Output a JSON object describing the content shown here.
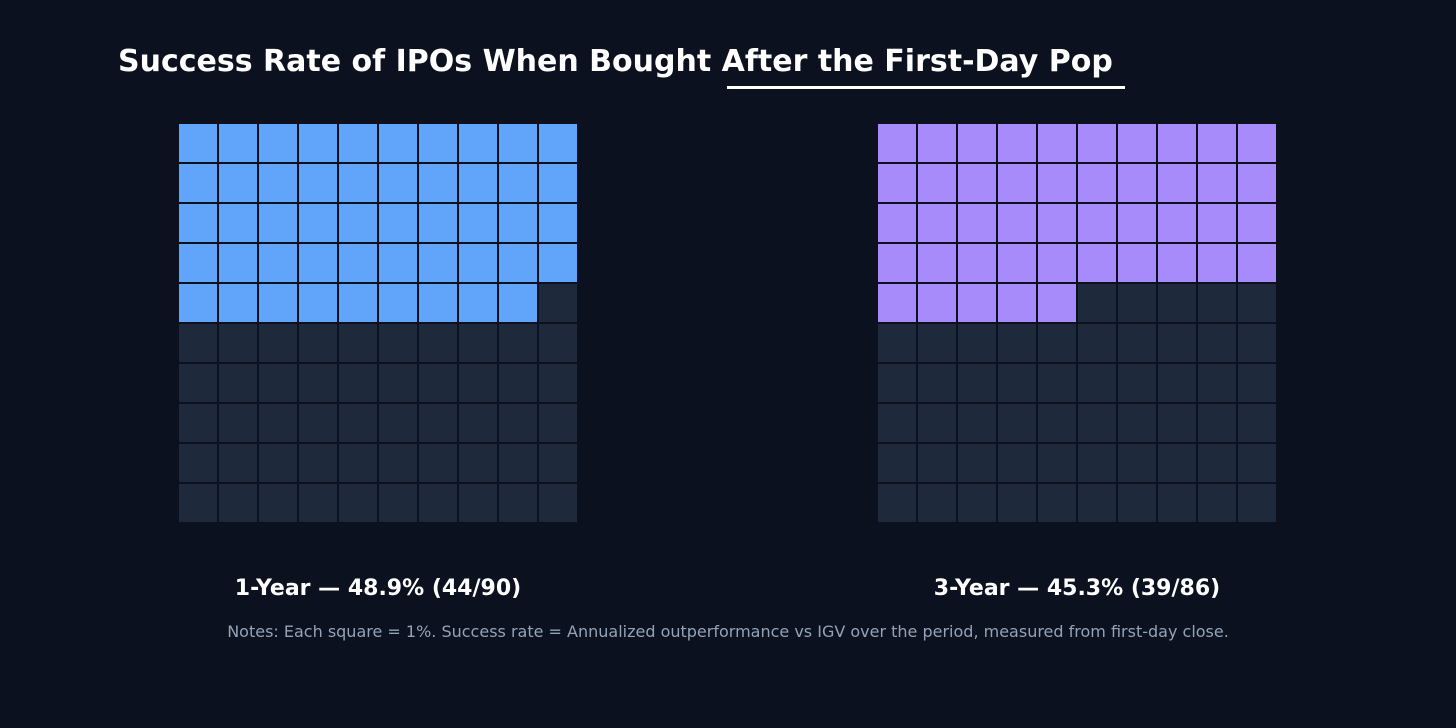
{
  "chart_data": [
    {
      "type": "waffle",
      "label": "1-Year — 48.9% (44/90)",
      "filled": 49,
      "total": 100,
      "color": "#60a5fa",
      "empty_color": "#1e293b"
    },
    {
      "type": "waffle",
      "label": "3-Year — 45.3% (39/86)",
      "filled": 45,
      "total": 100,
      "color": "#a78bfa",
      "empty_color": "#1e293b"
    }
  ],
  "title": {
    "prefix": "Success Rate of IPOs When Bought ",
    "highlight": "After the First-Day Pop"
  },
  "notes": "Notes: Each square = 1%. Success rate = Annualized outperformance vs IGV over the period, measured from first-day close."
}
